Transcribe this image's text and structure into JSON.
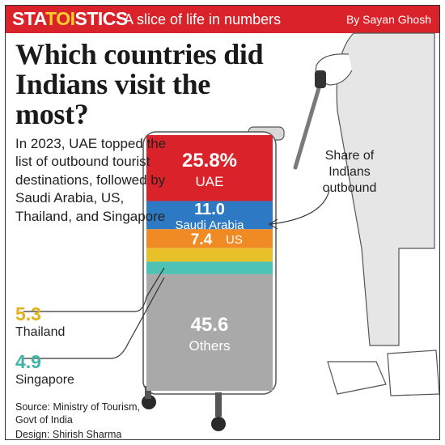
{
  "header": {
    "brand_pre": "STA",
    "brand_toi": "TOI",
    "brand_post": "STICS",
    "tagline": "A slice of life in numbers",
    "byline": "By Sayan Ghosh",
    "banner_color": "#d9222a"
  },
  "headline": "Which countries did Indians visit the most?",
  "dek": "In 2023, UAE topped the list of outbound tourist destinations, followed by Saudi Arabia, US, Thailand, and Singapore",
  "share_label": "Share of Indians outbound",
  "callouts": {
    "thailand": {
      "value": "5.3",
      "label": "Thailand"
    },
    "singapore": {
      "value": "4.9",
      "label": "Singapore"
    }
  },
  "source": "Source: Ministry of Tourism, Govt of India",
  "credit": "Design: Shirish Sharma",
  "chart_data": {
    "type": "bar",
    "orientation": "stacked-vertical",
    "unit": "%",
    "categories": [
      "UAE",
      "Saudi Arabia",
      "US",
      "Thailand",
      "Singapore",
      "Others"
    ],
    "values": [
      25.8,
      11.0,
      7.4,
      5.3,
      4.9,
      45.6
    ],
    "value_labels": [
      "25.8%",
      "11.0",
      "7.4",
      "5.3",
      "4.9",
      "45.6"
    ],
    "colors": [
      "#d9222a",
      "#2e79c4",
      "#f08a24",
      "#e8c12a",
      "#4ec2b4",
      "#a9a9a9"
    ],
    "inline_labels": [
      true,
      true,
      true,
      false,
      false,
      true
    ]
  }
}
